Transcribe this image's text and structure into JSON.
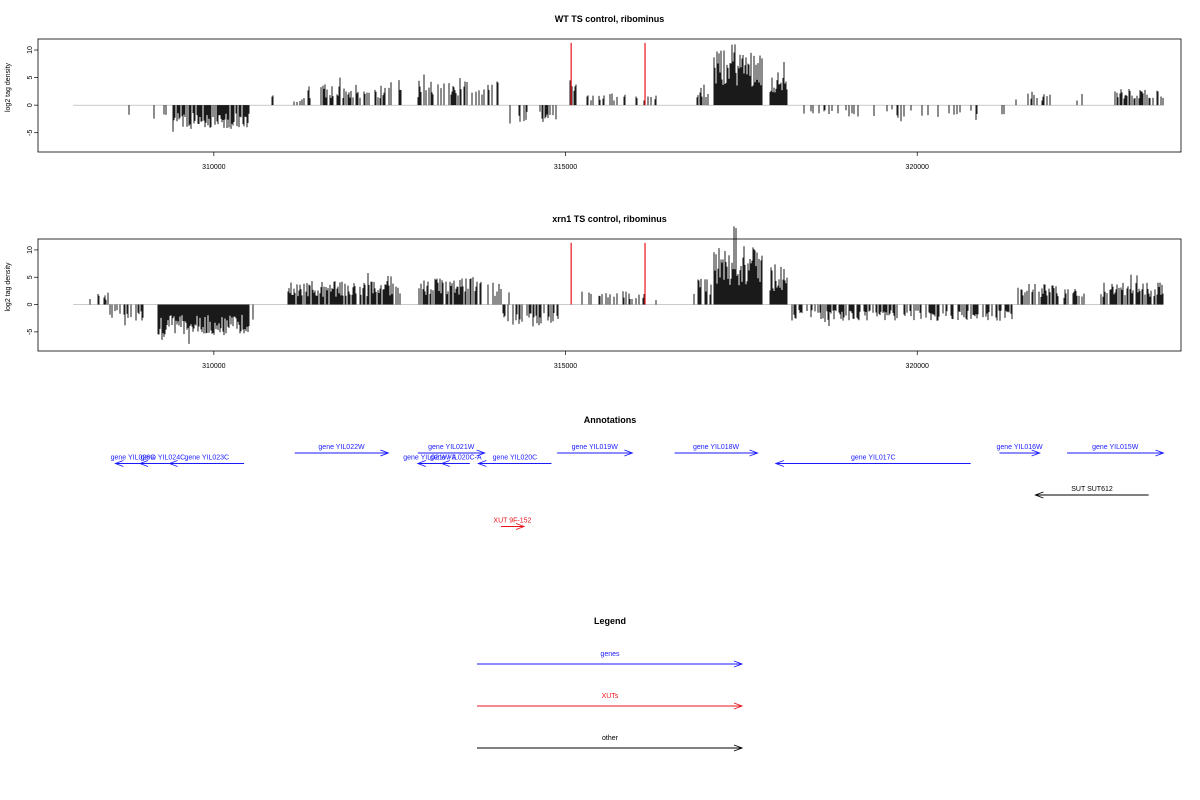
{
  "chart_data": [
    {
      "type": "bar",
      "title": "WT TS control, ribominus",
      "ylabel": "log2 tag density",
      "xlim": [
        307500,
        323750
      ],
      "ylim": [
        -8.5,
        12
      ],
      "yticks": [
        -5,
        0,
        5,
        10
      ],
      "xticks": [
        310000,
        315000,
        320000
      ],
      "xtick_labels": [
        "310000",
        "315000",
        "320000"
      ],
      "ytick_labels": [
        "-5",
        "0",
        "5",
        "10"
      ],
      "bar_color": "#000000",
      "marker_color": "#e8141c",
      "markers": [
        {
          "x": 315080,
          "value": 11.3
        },
        {
          "x": 316130,
          "value": 11.3
        }
      ],
      "segments": [
        {
          "start": 308500,
          "end": 309000,
          "value": -2.0,
          "density": 0.15,
          "sign": -1
        },
        {
          "start": 309000,
          "end": 309400,
          "value": -2.5,
          "density": 0.15,
          "sign": -1
        },
        {
          "start": 309400,
          "end": 310500,
          "value": -3.2,
          "density": 0.8,
          "sign": -1
        },
        {
          "start": 310800,
          "end": 310850,
          "value": 1.5,
          "density": 0.5,
          "sign": 1
        },
        {
          "start": 311100,
          "end": 311300,
          "value": 1.2,
          "density": 0.5,
          "sign": 1
        },
        {
          "start": 311300,
          "end": 312500,
          "value": 2.8,
          "density": 0.55,
          "sign": 1
        },
        {
          "start": 312500,
          "end": 312700,
          "value": 3.5,
          "density": 0.3,
          "sign": 1
        },
        {
          "start": 312900,
          "end": 313900,
          "value": 3.2,
          "density": 0.55,
          "sign": 1
        },
        {
          "start": 313900,
          "end": 314100,
          "value": 4.0,
          "density": 0.2,
          "sign": 1
        },
        {
          "start": 314150,
          "end": 314900,
          "value": -2.6,
          "density": 0.35,
          "sign": -1
        },
        {
          "start": 315050,
          "end": 315150,
          "value": 3.5,
          "density": 0.2,
          "sign": 1
        },
        {
          "start": 315300,
          "end": 316000,
          "value": 1.8,
          "density": 0.2,
          "sign": 1
        },
        {
          "start": 316000,
          "end": 316300,
          "value": 1.5,
          "density": 0.3,
          "sign": 1
        },
        {
          "start": 316800,
          "end": 317100,
          "value": 3.0,
          "density": 0.5,
          "sign": 1
        },
        {
          "start": 317100,
          "end": 317800,
          "value": 7.5,
          "density": 1.0,
          "sign": 1
        },
        {
          "start": 317900,
          "end": 318150,
          "value": 4.5,
          "density": 1.0,
          "sign": 1
        },
        {
          "start": 318150,
          "end": 321000,
          "value": -1.6,
          "density": 0.12,
          "sign": -1
        },
        {
          "start": 321200,
          "end": 321400,
          "value": -1.5,
          "density": 0.3,
          "sign": -1
        },
        {
          "start": 321400,
          "end": 322000,
          "value": 1.8,
          "density": 0.3,
          "sign": 1
        },
        {
          "start": 322000,
          "end": 322500,
          "value": 1.8,
          "density": 0.15,
          "sign": 1
        },
        {
          "start": 322800,
          "end": 323500,
          "value": 2.2,
          "density": 0.45,
          "sign": 1
        }
      ]
    },
    {
      "type": "bar",
      "title": "xrn1 TS control, ribominus",
      "ylabel": "log2 tag density",
      "xlim": [
        307500,
        323750
      ],
      "ylim": [
        -8.5,
        12
      ],
      "yticks": [
        -5,
        0,
        5,
        10
      ],
      "xticks": [
        310000,
        315000,
        320000
      ],
      "xtick_labels": [
        "310000",
        "315000",
        "320000"
      ],
      "ytick_labels": [
        "-5",
        "0",
        "5",
        "10"
      ],
      "bar_color": "#000000",
      "marker_color": "#e8141c",
      "markers": [
        {
          "x": 315080,
          "value": 11.3
        },
        {
          "x": 316130,
          "value": 11.3
        }
      ],
      "segments": [
        {
          "start": 308100,
          "end": 308500,
          "value": 1.5,
          "density": 0.3,
          "sign": 1
        },
        {
          "start": 308500,
          "end": 309000,
          "value": -2.2,
          "density": 0.4,
          "sign": -1
        },
        {
          "start": 309200,
          "end": 310500,
          "value": -4.2,
          "density": 1.0,
          "sign": -1
        },
        {
          "start": 310500,
          "end": 310600,
          "value": -2.0,
          "density": 0.3,
          "sign": -1
        },
        {
          "start": 311050,
          "end": 312600,
          "value": 3.2,
          "density": 0.85,
          "sign": 1
        },
        {
          "start": 312600,
          "end": 312700,
          "value": 4.0,
          "density": 0.3,
          "sign": 1
        },
        {
          "start": 312900,
          "end": 313800,
          "value": 3.6,
          "density": 0.75,
          "sign": 1
        },
        {
          "start": 313800,
          "end": 314200,
          "value": 3.0,
          "density": 0.3,
          "sign": 1
        },
        {
          "start": 314100,
          "end": 314900,
          "value": -3.0,
          "density": 0.6,
          "sign": -1
        },
        {
          "start": 315050,
          "end": 315150,
          "value": 2.5,
          "density": 0.2,
          "sign": 1
        },
        {
          "start": 315200,
          "end": 316300,
          "value": 1.8,
          "density": 0.3,
          "sign": 1
        },
        {
          "start": 316800,
          "end": 317100,
          "value": 3.5,
          "density": 0.6,
          "sign": 1
        },
        {
          "start": 317100,
          "end": 317800,
          "value": 7.8,
          "density": 1.0,
          "sign": 1
        },
        {
          "start": 317900,
          "end": 318150,
          "value": 5.0,
          "density": 1.0,
          "sign": 1
        },
        {
          "start": 318200,
          "end": 321200,
          "value": -2.2,
          "density": 0.55,
          "sign": -1
        },
        {
          "start": 321200,
          "end": 321400,
          "value": -2.0,
          "density": 0.4,
          "sign": -1
        },
        {
          "start": 321400,
          "end": 322000,
          "value": 2.8,
          "density": 0.6,
          "sign": 1
        },
        {
          "start": 322000,
          "end": 322400,
          "value": 2.2,
          "density": 0.4,
          "sign": 1
        },
        {
          "start": 322600,
          "end": 323500,
          "value": 3.0,
          "density": 0.75,
          "sign": 1
        }
      ]
    }
  ],
  "annotations": {
    "title": "Annotations",
    "colors": {
      "genes": "#1a1aff",
      "xuts": "#e8141c",
      "other": "#000000"
    },
    "items": [
      {
        "label": "gene YIL026C",
        "start": 308600,
        "end": 309100,
        "strand": "-",
        "kind": "genes",
        "row": 1
      },
      {
        "label": "gene YIL024C",
        "start": 308950,
        "end": 309600,
        "strand": "-",
        "kind": "genes",
        "row": 1
      },
      {
        "label": "gene YIL023C",
        "start": 309370,
        "end": 310430,
        "strand": "-",
        "kind": "genes",
        "row": 1
      },
      {
        "label": "gene YIL022W",
        "start": 311150,
        "end": 312480,
        "strand": "+",
        "kind": "genes",
        "row": 0
      },
      {
        "label": "gene YIL021W",
        "start": 312900,
        "end": 313850,
        "strand": "+",
        "kind": "genes",
        "row": 0
      },
      {
        "label": "gene YIL021W-A",
        "start": 312900,
        "end": 313240,
        "strand": "-",
        "kind": "genes",
        "row": 1
      },
      {
        "label": "gene YIL020C-A",
        "start": 313240,
        "end": 313640,
        "strand": "-",
        "kind": "genes",
        "row": 1
      },
      {
        "label": "gene YIL020C",
        "start": 313760,
        "end": 314800,
        "strand": "-",
        "kind": "genes",
        "row": 1
      },
      {
        "label": "gene YIL019W",
        "start": 314880,
        "end": 315950,
        "strand": "+",
        "kind": "genes",
        "row": 0
      },
      {
        "label": "gene YIL018W",
        "start": 316550,
        "end": 317730,
        "strand": "+",
        "kind": "genes",
        "row": 0
      },
      {
        "label": "gene YIL017C",
        "start": 317990,
        "end": 320760,
        "strand": "-",
        "kind": "genes",
        "row": 1
      },
      {
        "label": "gene YIL016W",
        "start": 321170,
        "end": 321740,
        "strand": "+",
        "kind": "genes",
        "row": 0
      },
      {
        "label": "gene YIL015W",
        "start": 322130,
        "end": 323500,
        "strand": "+",
        "kind": "genes",
        "row": 0
      },
      {
        "label": "SUT SUT612",
        "start": 321680,
        "end": 323290,
        "strand": "-",
        "kind": "other",
        "row": 4
      },
      {
        "label": "XUT 9F-152",
        "start": 314080,
        "end": 314410,
        "strand": "+",
        "kind": "xuts",
        "row": 7
      }
    ]
  },
  "legend": {
    "title": "Legend",
    "items": [
      {
        "label": "genes",
        "color": "#1a1aff"
      },
      {
        "label": "XUTs",
        "color": "#e8141c"
      },
      {
        "label": "other",
        "color": "#000000"
      }
    ]
  }
}
